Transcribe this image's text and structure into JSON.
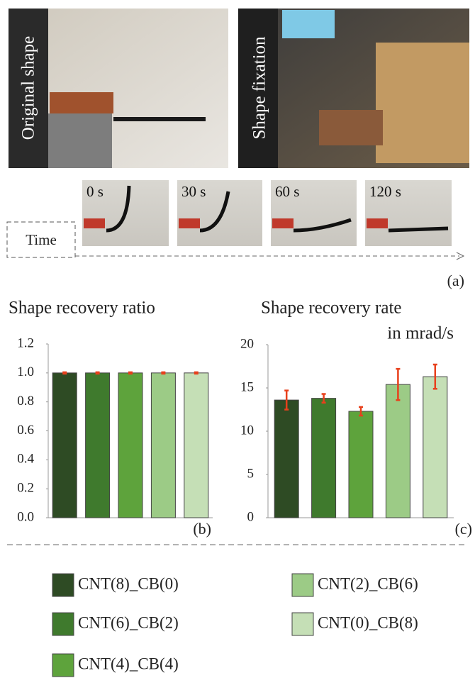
{
  "panel_a": {
    "photos": [
      "Original shape",
      "Shape fixation"
    ],
    "frames": [
      "0 s",
      "30 s",
      "60 s",
      "120 s"
    ],
    "axis_label": "Time",
    "panel_label": "(a)"
  },
  "chart_data": [
    {
      "type": "bar",
      "title": "Shape recovery ratio",
      "panel_label": "(b)",
      "ylim": [
        0,
        1.2
      ],
      "yticks": [
        {
          "value": 0,
          "label": "0.0"
        },
        {
          "value": 0.2,
          "label": "0.2"
        },
        {
          "value": 0.4,
          "label": "0.4"
        },
        {
          "value": 0.6,
          "label": "0.6"
        },
        {
          "value": 0.8,
          "label": "0.8"
        },
        {
          "value": 1,
          "label": "1.0"
        },
        {
          "value": 1.2,
          "label": "1.2"
        }
      ],
      "error_color": "#e8401c",
      "series": [
        {
          "name": "CNT(8)_CB(0)",
          "color": "#2e4b24",
          "values": [
            1.0
          ],
          "errors": [
            0.005
          ]
        },
        {
          "name": "CNT(6)_CB(2)",
          "color": "#3f7a2d",
          "values": [
            1.0
          ],
          "errors": [
            0.005
          ]
        },
        {
          "name": "CNT(4)_CB(4)",
          "color": "#5ea33c",
          "values": [
            1.0
          ],
          "errors": [
            0.005
          ]
        },
        {
          "name": "CNT(2)_CB(6)",
          "color": "#9ccb86",
          "values": [
            1.0
          ],
          "errors": [
            0.005
          ]
        },
        {
          "name": "CNT(0)_CB(8)",
          "color": "#c5dfb6",
          "values": [
            1.0
          ],
          "errors": [
            0.005
          ]
        }
      ]
    },
    {
      "type": "bar",
      "title": "Shape recovery rate",
      "subtitle": "in mrad/s",
      "panel_label": "(c)",
      "ylim": [
        0,
        20
      ],
      "yticks": [
        0,
        5,
        10,
        15,
        20
      ],
      "error_color": "#e8401c",
      "series": [
        {
          "name": "CNT(8)_CB(0)",
          "color": "#2e4b24",
          "values": [
            13.6
          ],
          "errors": [
            1.1
          ]
        },
        {
          "name": "CNT(6)_CB(2)",
          "color": "#3f7a2d",
          "values": [
            13.8
          ],
          "errors": [
            0.5
          ]
        },
        {
          "name": "CNT(4)_CB(4)",
          "color": "#5ea33c",
          "values": [
            12.3
          ],
          "errors": [
            0.5
          ]
        },
        {
          "name": "CNT(2)_CB(6)",
          "color": "#9ccb86",
          "values": [
            15.4
          ],
          "errors": [
            1.8
          ]
        },
        {
          "name": "CNT(0)_CB(8)",
          "color": "#c5dfb6",
          "values": [
            16.3
          ],
          "errors": [
            1.4
          ]
        }
      ]
    }
  ]
}
